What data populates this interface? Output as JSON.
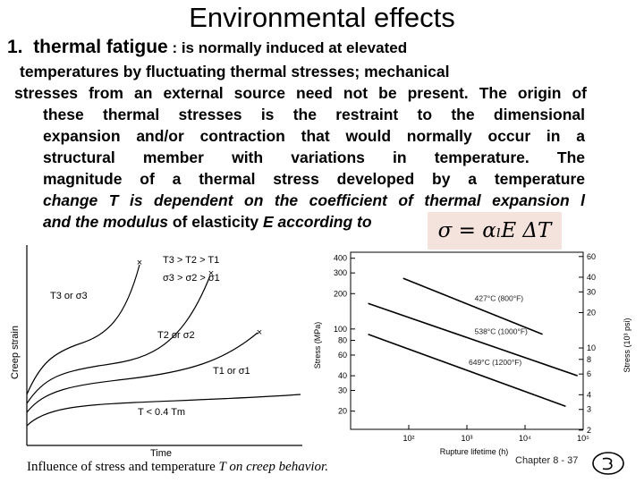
{
  "slide": {
    "title": "Environmental effects",
    "heading_number": "1.",
    "heading_term": "thermal fatigue",
    "heading_rest": " : is normally induced at elevated",
    "lines": [
      "temperatures by fluctuating thermal stresses; mechanical",
      "stresses from an external source need not be present. The origin of",
      "these thermal stresses is the restraint to the dimensional",
      "expansion and/or contraction that would normally occur in a",
      "structural member with variations in temperature. The",
      "magnitude of a thermal stress developed by a temperature",
      "change T is dependent on the coefficient of thermal expansion l"
    ],
    "line8_italic": "and the modulus",
    "line8_normal": " of elasticity ",
    "line8_end": "E according to",
    "formula": "σ = αₗE ΔT",
    "caption_normal": "Influence of stress and temperature ",
    "caption_italic": "T on creep behavior.",
    "footer": "Chapter 8 -  37"
  },
  "creep_figure": {
    "ylabel": "Creep strain",
    "xlabel": "Time",
    "legend_line1": "T3 > T2 > T1",
    "legend_line2": "σ3 > σ2 > σ1",
    "curve_labels": [
      "T3 or σ3",
      "T2 or σ2",
      "T1 or σ1",
      "T < 0.4 Tm"
    ]
  },
  "chart_data": {
    "type": "line",
    "xlabel": "Rupture lifetime (h)",
    "ylabel": "Stress (MPa)",
    "ylabel_right": "Stress (10³ psi)",
    "x_scale": "log",
    "y_scale": "log",
    "xlim": [
      10,
      100000
    ],
    "ylim": [
      14,
      450
    ],
    "x_ticks": [
      "10²",
      "10³",
      "10⁴",
      "10⁵"
    ],
    "x_tick_values": [
      100,
      1000,
      10000,
      100000
    ],
    "y_ticks": [
      400,
      300,
      200,
      100,
      80,
      60,
      40,
      30,
      20
    ],
    "y_ticks_right": [
      60,
      40,
      30,
      20,
      10,
      8,
      6,
      4,
      3,
      2
    ],
    "series": [
      {
        "name": "427°C (800°F)",
        "x": [
          80,
          20000
        ],
        "y": [
          270,
          90
        ]
      },
      {
        "name": "538°C (1000°F)",
        "x": [
          20,
          80000
        ],
        "y": [
          165,
          40
        ]
      },
      {
        "name": "649°C (1200°F)",
        "x": [
          20,
          50000
        ],
        "y": [
          90,
          22
        ]
      }
    ]
  }
}
